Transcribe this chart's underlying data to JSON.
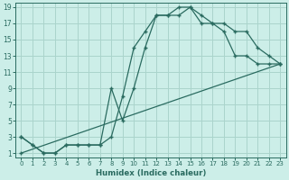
{
  "xlabel": "Humidex (Indice chaleur)",
  "bg_color": "#cceee8",
  "line_color": "#2a6b60",
  "grid_color": "#aad4cc",
  "xlim_min": -0.5,
  "xlim_max": 23.5,
  "ylim_min": 0.5,
  "ylim_max": 19.5,
  "xticks": [
    0,
    1,
    2,
    3,
    4,
    5,
    6,
    7,
    8,
    9,
    10,
    11,
    12,
    13,
    14,
    15,
    16,
    17,
    18,
    19,
    20,
    21,
    22,
    23
  ],
  "yticks": [
    1,
    3,
    5,
    7,
    9,
    11,
    13,
    15,
    17,
    19
  ],
  "line1_x": [
    0,
    1,
    2,
    3,
    4,
    5,
    6,
    7,
    8,
    9,
    10,
    11,
    12,
    13,
    14,
    15,
    16,
    17,
    18,
    19,
    20,
    21,
    22,
    23
  ],
  "line1_y": [
    3,
    2,
    1,
    1,
    2,
    2,
    2,
    2,
    3,
    8,
    14,
    16,
    18,
    18,
    18,
    19,
    18,
    17,
    17,
    16,
    16,
    14,
    13,
    12
  ],
  "line2_x": [
    0,
    1,
    2,
    3,
    4,
    5,
    6,
    7,
    8,
    9,
    10,
    11,
    12,
    13,
    14,
    15,
    16,
    17,
    18,
    19,
    20,
    21,
    22,
    23
  ],
  "line2_y": [
    3,
    2,
    1,
    1,
    2,
    2,
    2,
    2,
    9,
    5,
    9,
    14,
    18,
    18,
    19,
    19,
    17,
    17,
    16,
    13,
    13,
    12,
    12,
    12
  ],
  "line3_x": [
    0,
    23
  ],
  "line3_y": [
    1,
    12
  ]
}
